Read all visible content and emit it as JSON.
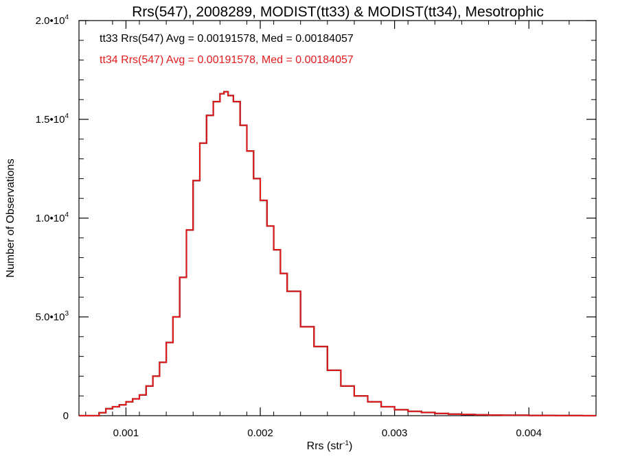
{
  "chart_data": {
    "type": "line",
    "title": "Rrs(547), 2008289, MODIST(tt33) & MODIST(tt34), Mesotrophic",
    "xlabel": "Rrs (str",
    "xlabel_sup": "-1",
    "xlabel_close": ")",
    "ylabel": "Number of Observations",
    "xlim": [
      0.00065,
      0.0045
    ],
    "ylim": [
      0,
      20000
    ],
    "x_ticks": [
      {
        "value": 0.001,
        "label": "0.001"
      },
      {
        "value": 0.002,
        "label": "0.002"
      },
      {
        "value": 0.003,
        "label": "0.003"
      },
      {
        "value": 0.004,
        "label": "0.004"
      }
    ],
    "y_ticks": [
      {
        "value": 0,
        "mant": "0",
        "exp": ""
      },
      {
        "value": 5000,
        "mant": "5.0•10",
        "exp": "3"
      },
      {
        "value": 10000,
        "mant": "1.0•10",
        "exp": "4"
      },
      {
        "value": 15000,
        "mant": "1.5•10",
        "exp": "4"
      },
      {
        "value": 20000,
        "mant": "2.0•10",
        "exp": "4"
      }
    ],
    "grid": false,
    "series": [
      {
        "name": "tt33",
        "color": "#000000",
        "stat_text": "tt33 Rrs(547) Avg = 0.00191578, Med = 0.00184057"
      },
      {
        "name": "tt34",
        "color": "#e41a1c",
        "stat_text": "tt34 Rrs(547) Avg = 0.00191578, Med = 0.00184057"
      }
    ],
    "histogram": {
      "x": [
        0.00065,
        0.00075,
        0.0008,
        0.00085,
        0.0009,
        0.00095,
        0.001,
        0.00105,
        0.0011,
        0.00115,
        0.0012,
        0.00125,
        0.0013,
        0.00135,
        0.0014,
        0.00145,
        0.0015,
        0.00155,
        0.0016,
        0.00165,
        0.0017,
        0.00173,
        0.00176,
        0.0018,
        0.00185,
        0.0019,
        0.00195,
        0.002,
        0.00205,
        0.0021,
        0.00215,
        0.0022,
        0.0023,
        0.0024,
        0.0025,
        0.0026,
        0.0027,
        0.0028,
        0.0029,
        0.003,
        0.0031,
        0.0032,
        0.0033,
        0.0034,
        0.0035,
        0.0036,
        0.0037,
        0.0038,
        0.004,
        0.0042,
        0.0044,
        0.0045
      ],
      "y": [
        0,
        0,
        150,
        350,
        450,
        550,
        700,
        850,
        1050,
        1500,
        2000,
        2700,
        3700,
        5000,
        7000,
        9400,
        11900,
        13800,
        15200,
        15900,
        16300,
        16400,
        16200,
        15900,
        14700,
        13400,
        12000,
        10900,
        9600,
        8400,
        7200,
        6300,
        4500,
        3500,
        2300,
        1500,
        1000,
        700,
        450,
        300,
        220,
        160,
        110,
        80,
        60,
        40,
        30,
        20,
        10,
        5,
        0,
        0
      ]
    }
  }
}
